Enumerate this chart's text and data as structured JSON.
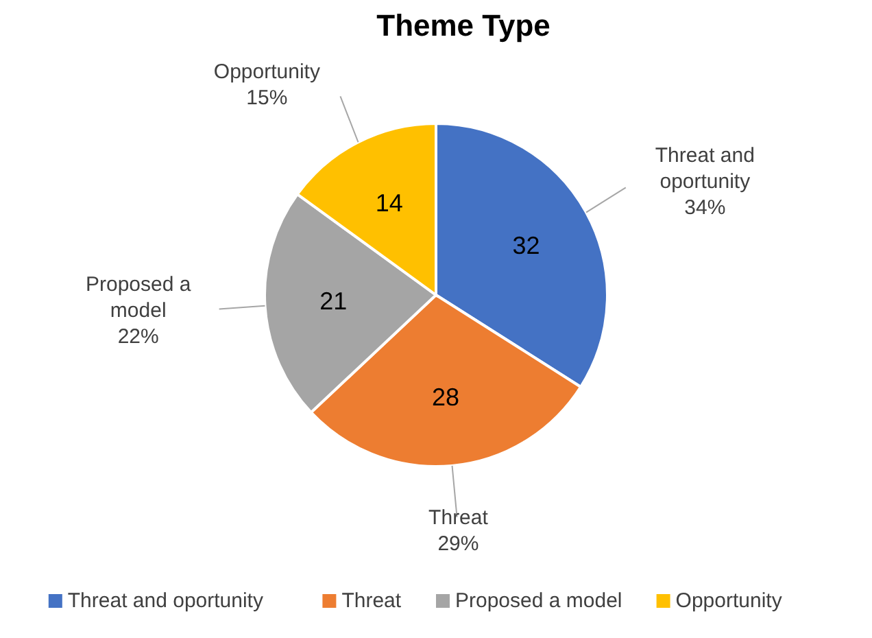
{
  "chart_data": {
    "type": "pie",
    "title": "Theme Type",
    "categories": [
      "Threat and oportunity",
      "Threat",
      "Proposed a model",
      "Opportunity"
    ],
    "values": [
      34,
      29,
      22,
      15
    ],
    "colors": [
      "#4472c4",
      "#ed7d31",
      "#a5a5a5",
      "#ffc000"
    ],
    "value_labels": [
      "34%",
      "29%",
      "22%",
      "15%"
    ],
    "annotations": [
      {
        "text": "32",
        "x": "Threat and oportunity"
      },
      {
        "text": "28",
        "x": "Threat"
      },
      {
        "text": "21",
        "x": "Proposed a model"
      },
      {
        "text": "14",
        "x": "Opportunity"
      }
    ],
    "legend": "bottom"
  }
}
